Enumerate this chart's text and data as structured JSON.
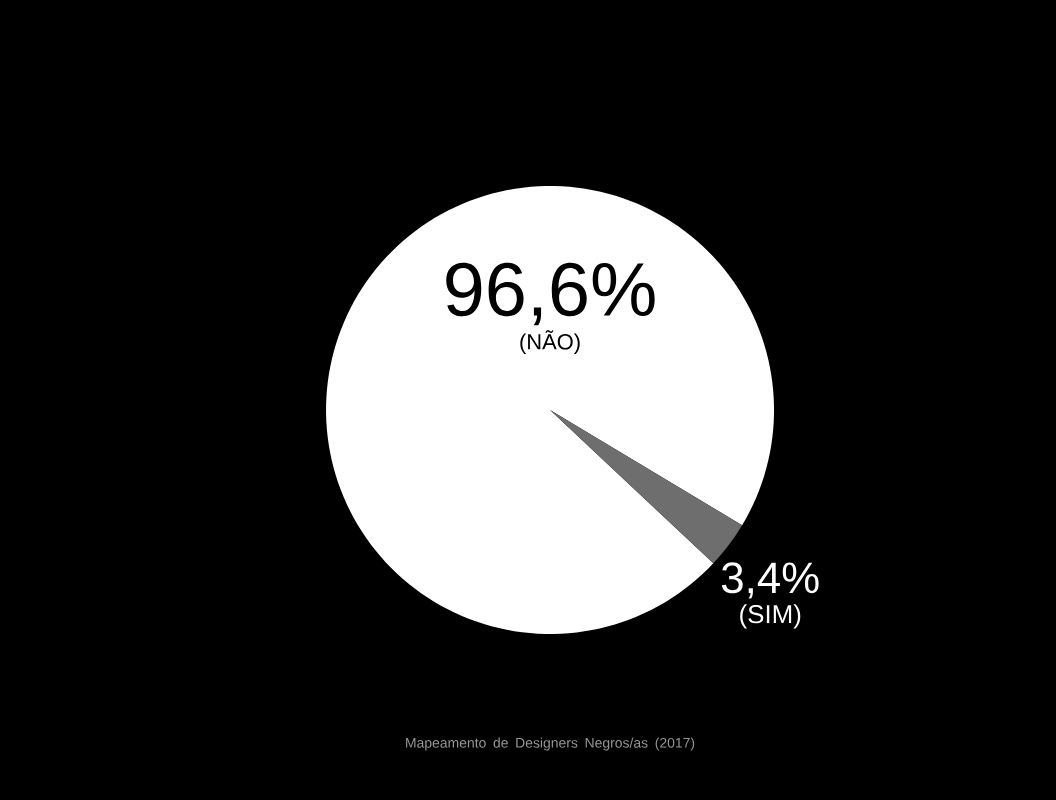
{
  "chart_data": {
    "type": "pie",
    "categories": [
      "(NÃO)",
      "(SIM)"
    ],
    "values": [
      96.6,
      3.4
    ],
    "value_labels": [
      "96,6%",
      "3,4%"
    ],
    "colors": [
      "#ffffff",
      "#6e6e6e"
    ],
    "annotations": [
      "Mapeamento de Designers Negros/as (2017)"
    ]
  }
}
